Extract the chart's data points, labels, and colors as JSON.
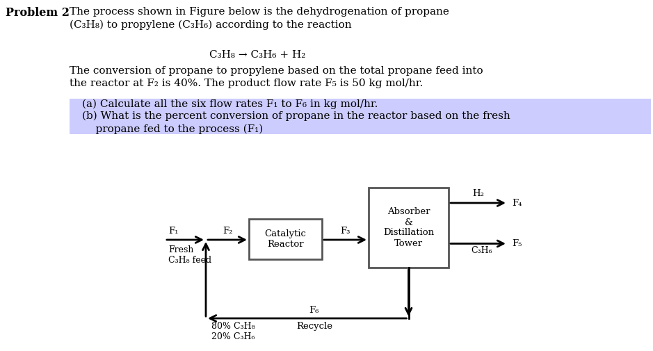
{
  "bg_color": "#ffffff",
  "highlight_color": "#ccccff",
  "text_color": "#000000",
  "title_bold": "Problem 2",
  "title_text": "The process shown in Figure below is the dehydrogenation of propane\n(C₃H₈) to propylene (C₃H₆) according to the reaction",
  "reaction": "C₃H₈ → C₃H₆ + H₂",
  "para1": "The conversion of propane to propylene based on the total propane feed into\nthe reactor at F₂ is 40%. The product flow rate F₅ is 50 kg mol/hr.",
  "part_a": "(a) Calculate all the six flow rates F₁ to F₆ in kg mol/hr.",
  "part_b": "(b) What is the percent conversion of propane in the reactor based on the fresh\n    propane fed to the process (F₁)",
  "reactor_label": "Catalytic\nReactor",
  "tower_label": "Absorber\n&\nDistillation\nTower",
  "f1_label": "F₁",
  "f2_label": "F₂",
  "f3_label": "F₃",
  "f4_label": "F₄",
  "f5_label": "F₅",
  "f6_label": "F₆",
  "fresh_label": "Fresh\nC₃H₈ feed",
  "recycle_label": "Recycle",
  "h2_label": "H₂",
  "c3h6_label": "C₃H₆",
  "bottom_label": "80% C₃H₈\n20% C₃H₆",
  "fig_width": 9.39,
  "fig_height": 5.05,
  "dpi": 100
}
